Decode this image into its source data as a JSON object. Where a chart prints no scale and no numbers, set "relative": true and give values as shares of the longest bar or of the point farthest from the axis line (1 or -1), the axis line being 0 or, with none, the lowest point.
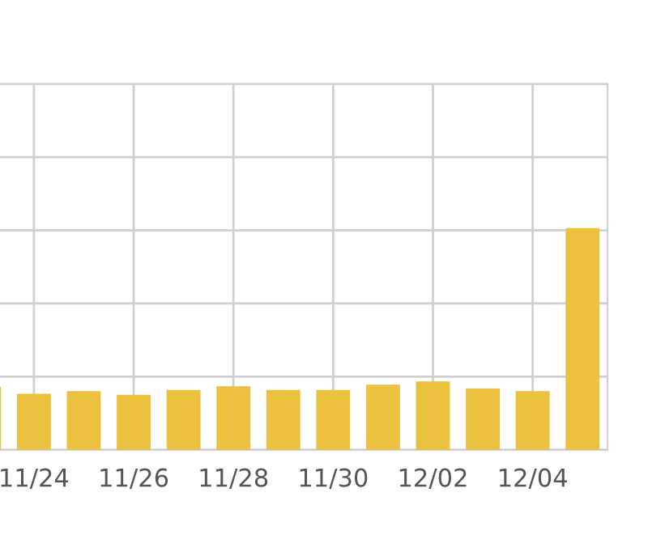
{
  "chart_data": {
    "type": "bar",
    "relative": true,
    "categories": [
      null,
      "11/24",
      null,
      "11/26",
      null,
      "11/28",
      null,
      "11/30",
      null,
      "12/02",
      null,
      "12/04",
      null
    ],
    "values": [
      0.285,
      0.253,
      0.265,
      0.248,
      0.27,
      0.287,
      0.27,
      0.27,
      0.294,
      0.309,
      0.277,
      0.265,
      1
    ],
    "color": "#ebc140",
    "grid": true
  }
}
